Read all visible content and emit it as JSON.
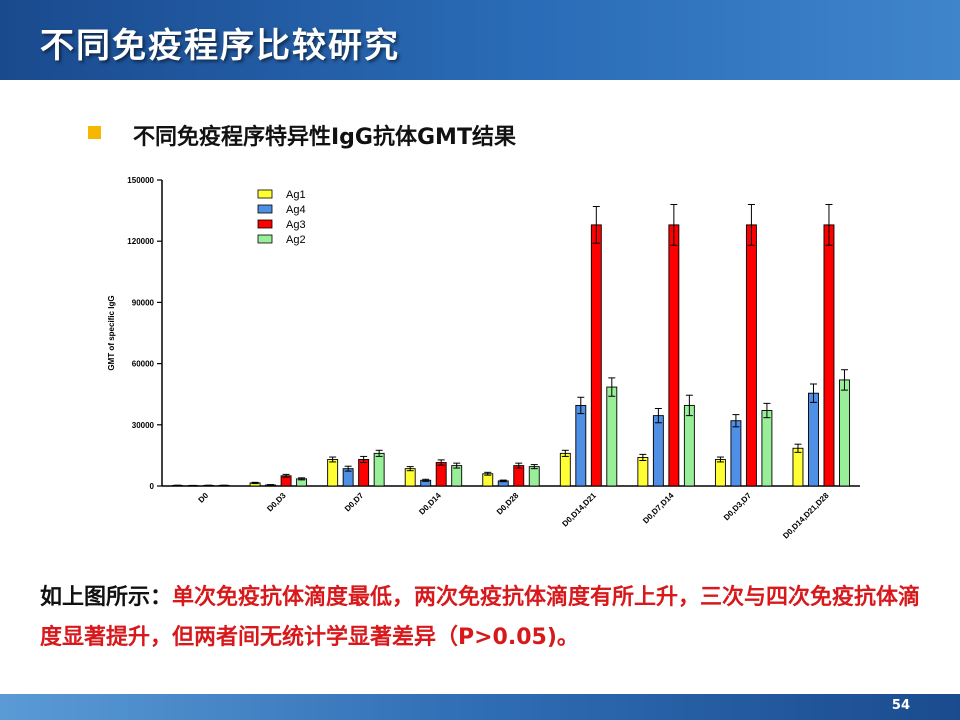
{
  "slide": {
    "title": "不同免疫程序比较研究",
    "subtitle": "不同免疫程序特异性IgG抗体GMT结果",
    "conclusion_lead": "如上图所示：",
    "conclusion_body": "单次免疫抗体滴度最低，两次免疫抗体滴度有所上升，三次与四次免疫抗体滴度显著提升，但两者间无统计学显著差异（P>0.05)。",
    "page_number": "54"
  },
  "colors": {
    "accent_bullet": "#f5b700",
    "conclusion_highlight": "#d7191c"
  },
  "chart_data": {
    "type": "bar",
    "ylabel": "GMT of specific IgG",
    "ylim": [
      0,
      150000
    ],
    "yticks": [
      0,
      30000,
      60000,
      90000,
      120000,
      150000
    ],
    "legend_position": "top-left",
    "categories": [
      "D0",
      "D0,D3",
      "D0,D7",
      "D0,D14",
      "D0,D28",
      "D0,D14,D21",
      "D0,D7,D14",
      "D0,D3,D7",
      "D0,D14,D21,D28"
    ],
    "series": [
      {
        "name": "Ag1",
        "color": "#ffff33",
        "values": [
          300,
          1500,
          13000,
          8500,
          6000,
          16000,
          14000,
          13000,
          18500
        ],
        "errors": [
          100,
          300,
          1200,
          1000,
          700,
          1500,
          1500,
          1200,
          2000
        ]
      },
      {
        "name": "Ag4",
        "color": "#4f8fe6",
        "values": [
          200,
          500,
          8500,
          2800,
          2500,
          39500,
          34500,
          32000,
          45500
        ],
        "errors": [
          100,
          200,
          1200,
          500,
          400,
          4000,
          3500,
          3000,
          4500
        ]
      },
      {
        "name": "Ag3",
        "color": "#ff0000",
        "values": [
          300,
          5000,
          13000,
          11500,
          10000,
          128000,
          128000,
          128000,
          128000
        ],
        "errors": [
          100,
          700,
          1500,
          1300,
          1200,
          9000,
          10000,
          10000,
          10000
        ]
      },
      {
        "name": "Ag2",
        "color": "#99ee99",
        "values": [
          300,
          3500,
          16000,
          10000,
          9500,
          48500,
          39500,
          37000,
          52000
        ],
        "errors": [
          100,
          500,
          1500,
          1200,
          1000,
          4500,
          5000,
          3500,
          5000
        ]
      }
    ]
  }
}
